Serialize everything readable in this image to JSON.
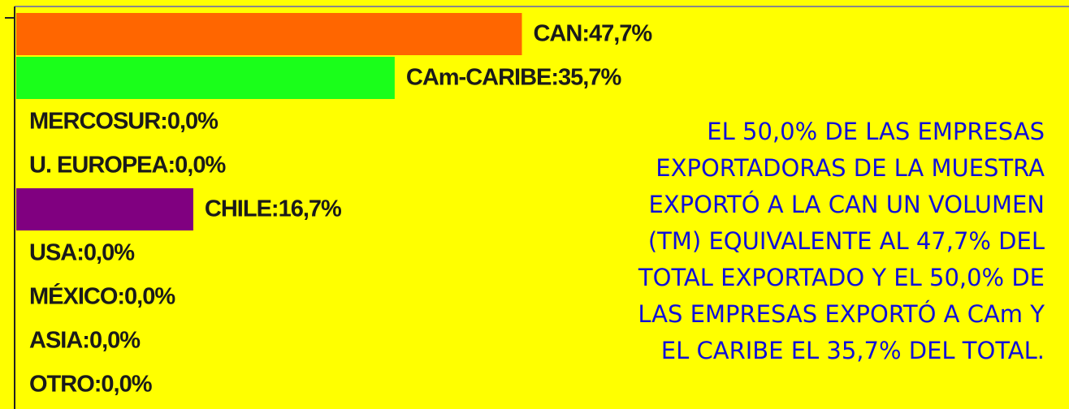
{
  "chart_data": {
    "type": "bar",
    "values": [
      47.7,
      35.7,
      0,
      0,
      16.7,
      0,
      0,
      0,
      0
    ],
    "value_labels": [
      "CAN:47,7%",
      "CAm-CARIBE:35,7%",
      "MERCOSUR:0,0%",
      "U. EUROPEA:0,0%",
      "CHILE:16,7%",
      "USA:0,0%",
      "MÉXICO:0,0%",
      "ASIA:0,0%",
      "OTRO:0,0%"
    ],
    "colors": [
      "#ff6600",
      "#1aff1a",
      "#ff6600",
      "#ff6600",
      "#800080",
      "#ff6600",
      "#ff6600",
      "#ff6600",
      "#ff6600"
    ],
    "annotation": [
      "EL 50,0% DE LAS EMPRESAS",
      "EXPORTADORAS DE LA MUESTRA",
      "EXPORTÓ A LA CAN UN VOLUMEN",
      "(TM) EQUIVALENTE AL 47,7%  DEL",
      "TOTAL EXPORTADO Y EL 50,0%  DE",
      "LAS EMPRESAS EXPORTÓ A CAm Y",
      "EL CARIBE EL 35,7% DEL TOTAL."
    ]
  }
}
